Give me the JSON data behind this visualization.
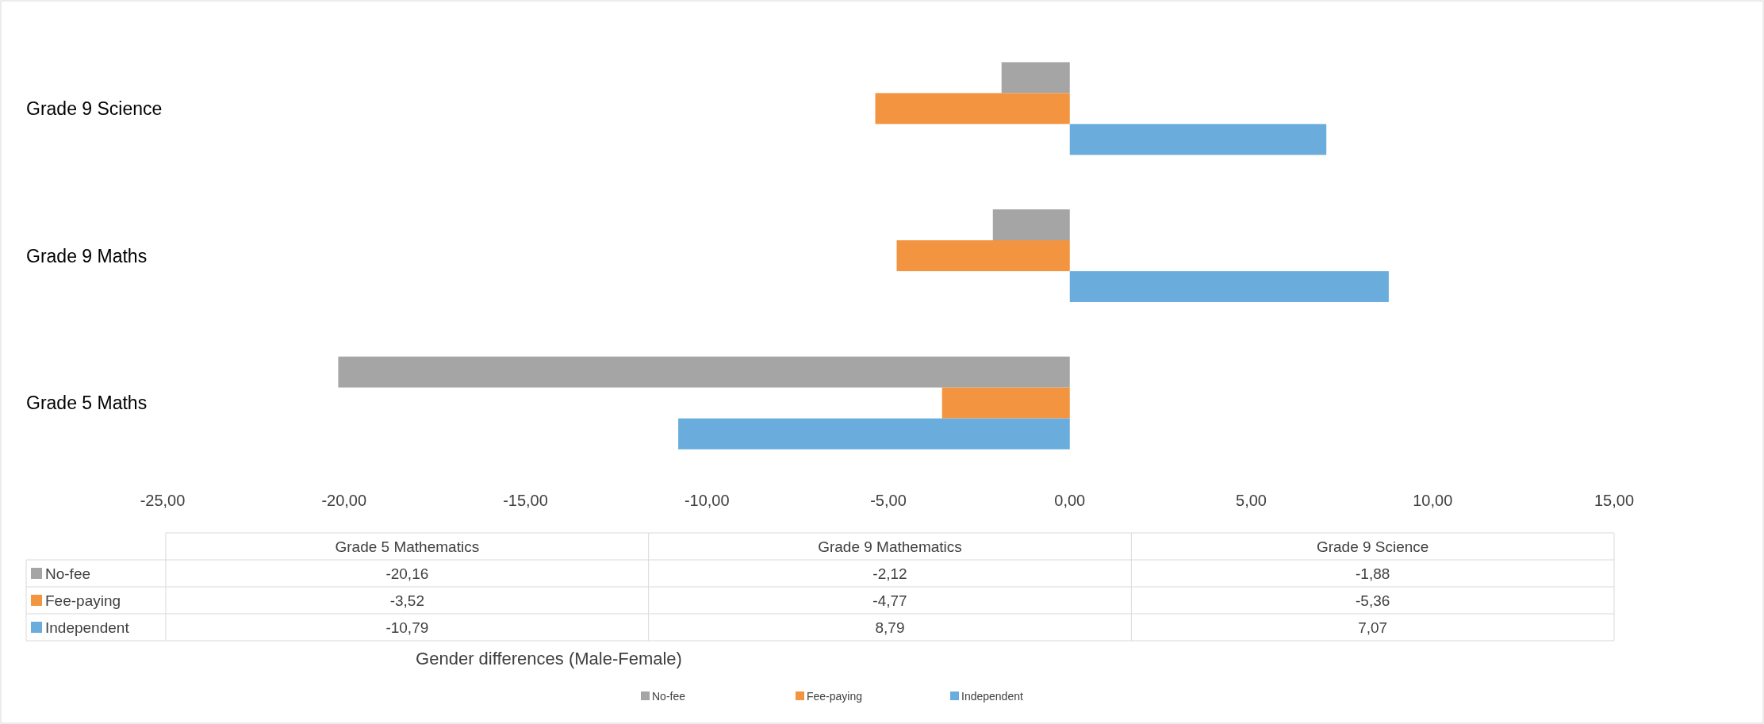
{
  "chart_data": {
    "type": "bar",
    "orientation": "horizontal",
    "categories": [
      "Grade 9 Science",
      "Grade 9 Maths",
      "Grade 5 Maths"
    ],
    "series": [
      {
        "name": "No-fee",
        "color": "#a5a5a5",
        "values": [
          -1.88,
          -2.12,
          -20.16
        ]
      },
      {
        "name": "Fee-paying",
        "color": "#f29440",
        "values": [
          -5.36,
          -4.77,
          -3.52
        ]
      },
      {
        "name": "Independent",
        "color": "#6aaddd",
        "values": [
          7.07,
          8.79,
          -10.79
        ]
      }
    ],
    "xlim": [
      -25,
      15
    ],
    "xticks": [
      {
        "value": -25,
        "label": "-25,00"
      },
      {
        "value": -20,
        "label": "-20,00"
      },
      {
        "value": -15,
        "label": "-15,00"
      },
      {
        "value": -10,
        "label": "-10,00"
      },
      {
        "value": -5,
        "label": "-5,00"
      },
      {
        "value": 0,
        "label": "0,00"
      },
      {
        "value": 5,
        "label": "5,00"
      },
      {
        "value": 10,
        "label": "10,00"
      },
      {
        "value": 15,
        "label": "15,00"
      }
    ],
    "annotations": [
      "Grade 5 Mathematics",
      "Grade 9 Mathematics",
      "Grade 9 Science",
      "-20,16",
      "-2,12",
      "-1,88",
      "-3,52",
      "-4,77",
      "-5,36",
      "-10,79",
      "8,79",
      "7,07",
      "Gender differences (Male-Female)"
    ],
    "grid": false,
    "legend": "bottom"
  }
}
